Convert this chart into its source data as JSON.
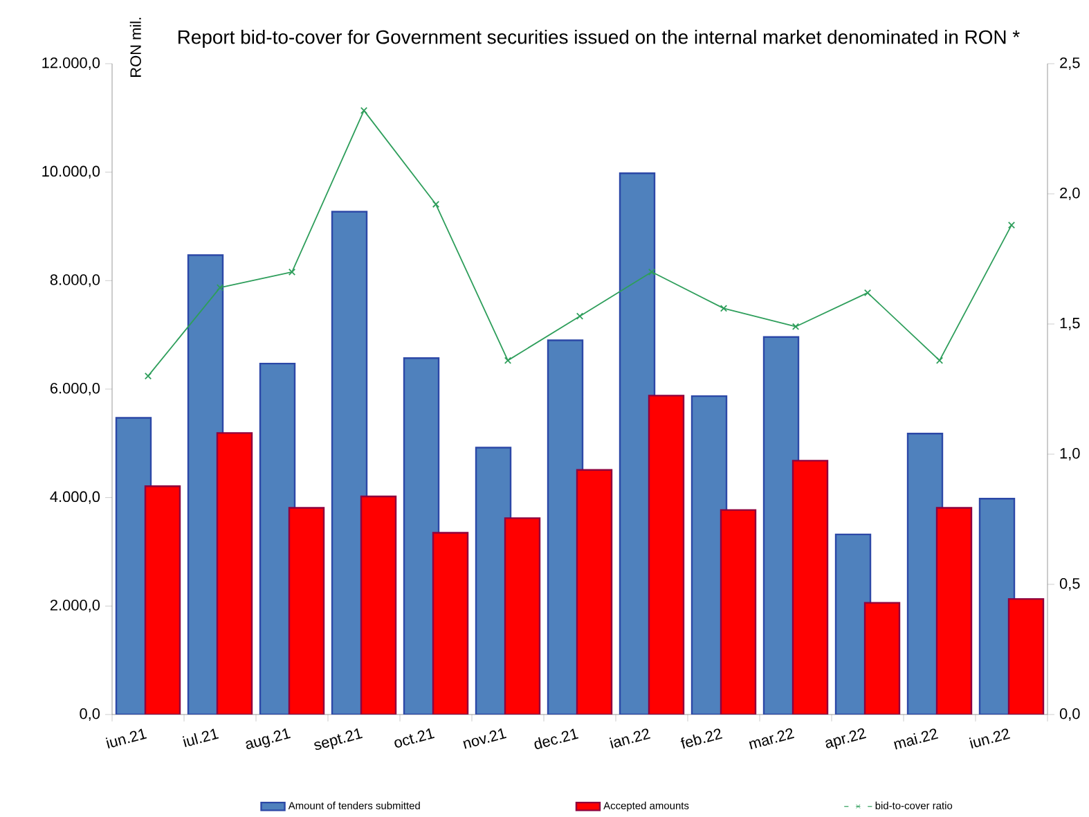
{
  "chart_data": {
    "type": "bar",
    "title": "Report bid-to-cover for Government securities issued on the internal market denominated in RON *",
    "ylabel": "RON mil.",
    "categories": [
      "iun.21",
      "iul.21",
      "aug.21",
      "sept.21",
      "oct.21",
      "nov.21",
      "dec.21",
      "ian.22",
      "feb.22",
      "mar.22",
      "apr.22",
      "mai.22",
      "iun.22"
    ],
    "series": [
      {
        "name": "Amount of tenders submitted",
        "color": "#4f81bd",
        "values": [
          5470,
          8470,
          6470,
          9270,
          6570,
          4920,
          6900,
          9980,
          5870,
          6960,
          3320,
          5180,
          3980
        ]
      },
      {
        "name": "Accepted amounts",
        "color": "#ff0000",
        "values": [
          4210,
          5190,
          3810,
          4020,
          3350,
          3620,
          4510,
          5880,
          3770,
          4680,
          2060,
          3810,
          2130
        ]
      },
      {
        "name": "bid-to-cover ratio",
        "type": "line",
        "axis": "y2",
        "color": "#2e9e5b",
        "marker": "cross",
        "values": [
          1.3,
          1.64,
          1.7,
          2.32,
          1.96,
          1.36,
          1.53,
          1.7,
          1.56,
          1.49,
          1.62,
          1.36,
          1.88
        ]
      }
    ],
    "ylim": [
      0,
      12000
    ],
    "yticks": [
      {
        "value": 0,
        "label": "0,0"
      },
      {
        "value": 2000,
        "label": "2.000,0"
      },
      {
        "value": 4000,
        "label": "4.000,0"
      },
      {
        "value": 6000,
        "label": "6.000,0"
      },
      {
        "value": 8000,
        "label": "8.000,0"
      },
      {
        "value": 10000,
        "label": "10.000,0"
      },
      {
        "value": 12000,
        "label": "12.000,0"
      }
    ],
    "y2lim": [
      0,
      2.5
    ],
    "y2ticks": [
      {
        "value": 0,
        "label": "0,0"
      },
      {
        "value": 0.5,
        "label": "0,5"
      },
      {
        "value": 1.0,
        "label": "1,0"
      },
      {
        "value": 1.5,
        "label": "1,5"
      },
      {
        "value": 2.0,
        "label": "2,0"
      },
      {
        "value": 2.5,
        "label": "2,5"
      }
    ],
    "grid": false,
    "legend": "bottom"
  }
}
